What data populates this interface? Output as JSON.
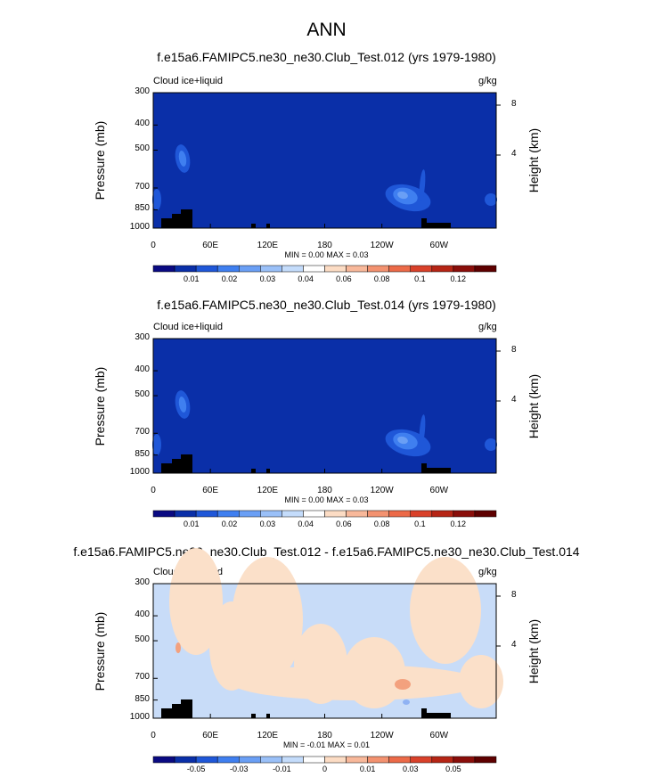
{
  "title": "ANN",
  "colorbar_colors": [
    "#0a0a82",
    "#0a2fa8",
    "#1f57d8",
    "#3f7ff0",
    "#6a9ff5",
    "#9ac0f8",
    "#c4dcfb",
    "#ffffff",
    "#fcdcc4",
    "#f8b89a",
    "#f39270",
    "#ec6a48",
    "#d9412a",
    "#b62515",
    "#8a0e0a",
    "#5e0000"
  ],
  "chart_data": [
    {
      "type": "heatmap",
      "title": "f.e15a6.FAMIPC5.ne30_ne30.Club_Test.012 (yrs 1979-1980)",
      "variable": "Cloud ice+liquid",
      "units": "g/kg",
      "ylabel": "Pressure (mb)",
      "ylabel_right": "Height (km)",
      "x_ticks": [
        "0",
        "60E",
        "120E",
        "180",
        "120W",
        "60W"
      ],
      "y_ticks": [
        "300",
        "400",
        "500",
        "700",
        "850",
        "1000"
      ],
      "y_right_ticks": [
        "8",
        "4"
      ],
      "min_max_text": "MIN =   0.00   MAX =   0.03",
      "colorbar_labels": [
        "0.01",
        "0.02",
        "0.03",
        "0.04",
        "0.06",
        "0.08",
        "0.1",
        "0.12"
      ],
      "background": "#0a2fa8"
    },
    {
      "type": "heatmap",
      "title": "f.e15a6.FAMIPC5.ne30_ne30.Club_Test.014 (yrs 1979-1980)",
      "variable": "Cloud ice+liquid",
      "units": "g/kg",
      "ylabel": "Pressure (mb)",
      "ylabel_right": "Height (km)",
      "x_ticks": [
        "0",
        "60E",
        "120E",
        "180",
        "120W",
        "60W"
      ],
      "y_ticks": [
        "300",
        "400",
        "500",
        "700",
        "850",
        "1000"
      ],
      "y_right_ticks": [
        "8",
        "4"
      ],
      "min_max_text": "MIN =   0.00   MAX =   0.03",
      "colorbar_labels": [
        "0.01",
        "0.02",
        "0.03",
        "0.04",
        "0.06",
        "0.08",
        "0.1",
        "0.12"
      ],
      "background": "#0a2fa8"
    },
    {
      "type": "heatmap",
      "title": "f.e15a6.FAMIPC5.ne30_ne30.Club_Test.012 - f.e15a6.FAMIPC5.ne30_ne30.Club_Test.014",
      "variable": "Cloud ice+liquid",
      "units": "g/kg",
      "ylabel": "Pressure (mb)",
      "ylabel_right": "Height (km)",
      "x_ticks": [
        "0",
        "60E",
        "120E",
        "180",
        "120W",
        "60W"
      ],
      "y_ticks": [
        "300",
        "400",
        "500",
        "700",
        "850",
        "1000"
      ],
      "y_right_ticks": [
        "8",
        "4"
      ],
      "min_max_text": "MIN =  -0.01   MAX =   0.01",
      "colorbar_labels": [
        "-0.05",
        "-0.03",
        "-0.01",
        "0",
        "0.01",
        "0.03",
        "0.05"
      ],
      "background": "#c8dcf8"
    }
  ]
}
